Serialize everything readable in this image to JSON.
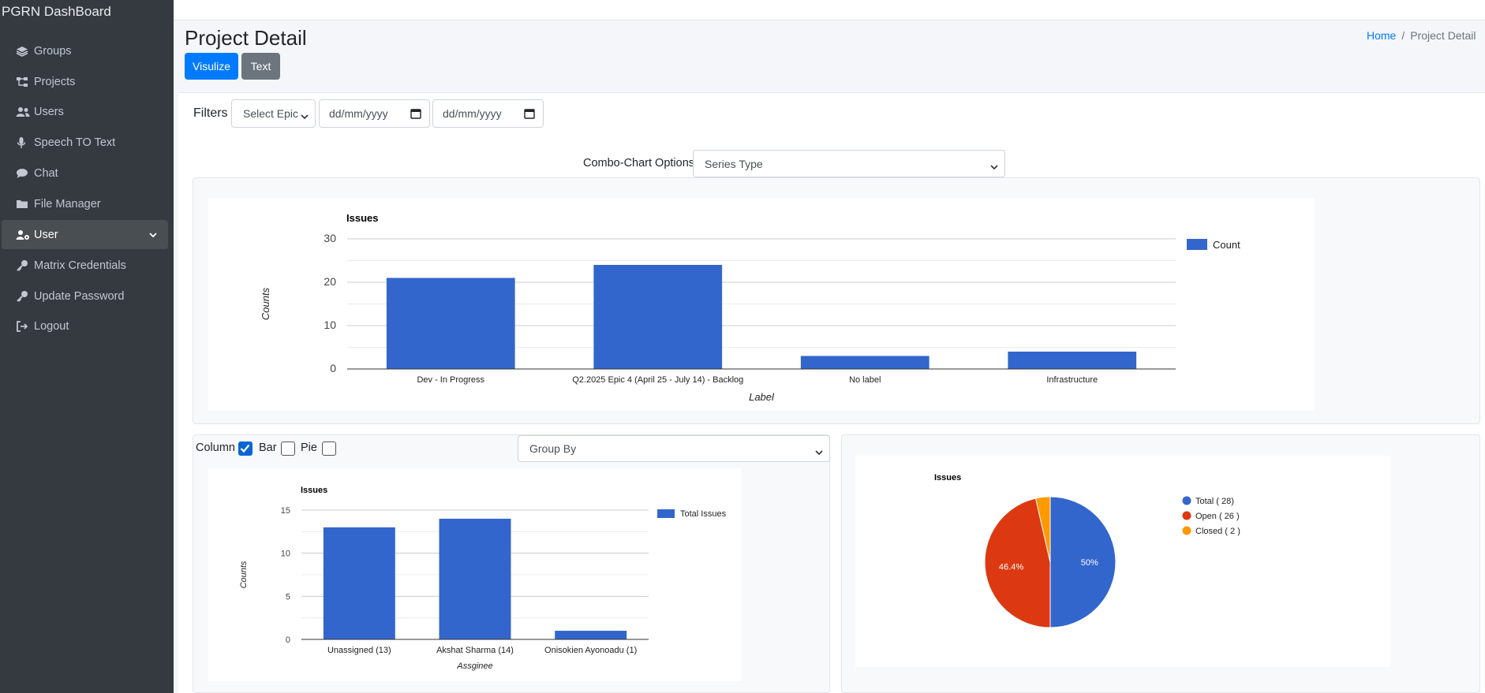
{
  "app": {
    "brand": "PGRN DashBoard"
  },
  "sidebar": {
    "items": [
      {
        "label": "Groups",
        "icon": "layers-icon"
      },
      {
        "label": "Projects",
        "icon": "sitemap-icon"
      },
      {
        "label": "Users",
        "icon": "users-icon"
      },
      {
        "label": "Speech TO Text",
        "icon": "microphone-icon"
      },
      {
        "label": "Chat",
        "icon": "chat-icon"
      },
      {
        "label": "File Manager",
        "icon": "folder-icon"
      },
      {
        "label": "User",
        "icon": "user-cog-icon",
        "active": true
      },
      {
        "label": "Matrix Credentials",
        "icon": "key-icon"
      },
      {
        "label": "Update Password",
        "icon": "key-icon"
      },
      {
        "label": "Logout",
        "icon": "logout-icon"
      }
    ]
  },
  "header": {
    "title": "Project Detail",
    "visualize_label": "Visulize",
    "text_label": "Text",
    "breadcrumb": {
      "home": "Home",
      "separator": "/",
      "current": "Project Detail"
    }
  },
  "filters": {
    "label": "Filters",
    "epic_select": "Select Epic",
    "date_from_placeholder": "dd/mm/yyyy",
    "date_to_placeholder": "dd/mm/yyyy"
  },
  "combo": {
    "label": "Combo-Chart Options",
    "series_type": "Series Type"
  },
  "chart_types": {
    "column": "Column",
    "bar": "Bar",
    "pie": "Pie",
    "column_checked": true,
    "bar_checked": false,
    "pie_checked": false
  },
  "group_by": "Group By",
  "colors": {
    "accent": "#007bff",
    "bar": "#3366cc",
    "red": "#dc3912",
    "orange": "#ff9900",
    "sidebar": "#343a40"
  },
  "chart_data": [
    {
      "type": "bar",
      "title": "Issues",
      "xlabel": "Label",
      "ylabel": "Counts",
      "categories": [
        "Dev - In Progress",
        "Q2.2025 Epic 4 (April 25 - July 14) - Backlog",
        "No label",
        "Infrastructure"
      ],
      "series": [
        {
          "name": "Count",
          "values": [
            21,
            24,
            3,
            4
          ]
        }
      ],
      "yticks": [
        "0",
        "10",
        "20",
        "30"
      ],
      "ylim": [
        0,
        30
      ],
      "grid": true,
      "legend": "right"
    },
    {
      "type": "bar",
      "title": "Issues",
      "xlabel": "Assginee",
      "ylabel": "Counts",
      "categories": [
        "Unassigned (13)",
        "Akshat Sharma (14)",
        "Onisokien Ayonoadu (1)"
      ],
      "series": [
        {
          "name": "Total Issues",
          "values": [
            13,
            14,
            1
          ]
        }
      ],
      "yticks": [
        "0",
        "5",
        "10",
        "15"
      ],
      "ylim": [
        0,
        15
      ],
      "grid": true,
      "legend": "right"
    },
    {
      "type": "pie",
      "title": "Issues",
      "labels": [
        "Total ( 28)",
        "Open ( 26 )",
        "Closed ( 2 )"
      ],
      "values": [
        28,
        26,
        2
      ],
      "slice_labels": [
        "50%",
        "46.4%",
        ""
      ],
      "colors": [
        "#3366cc",
        "#dc3912",
        "#ff9900"
      ],
      "legend": "right"
    }
  ]
}
